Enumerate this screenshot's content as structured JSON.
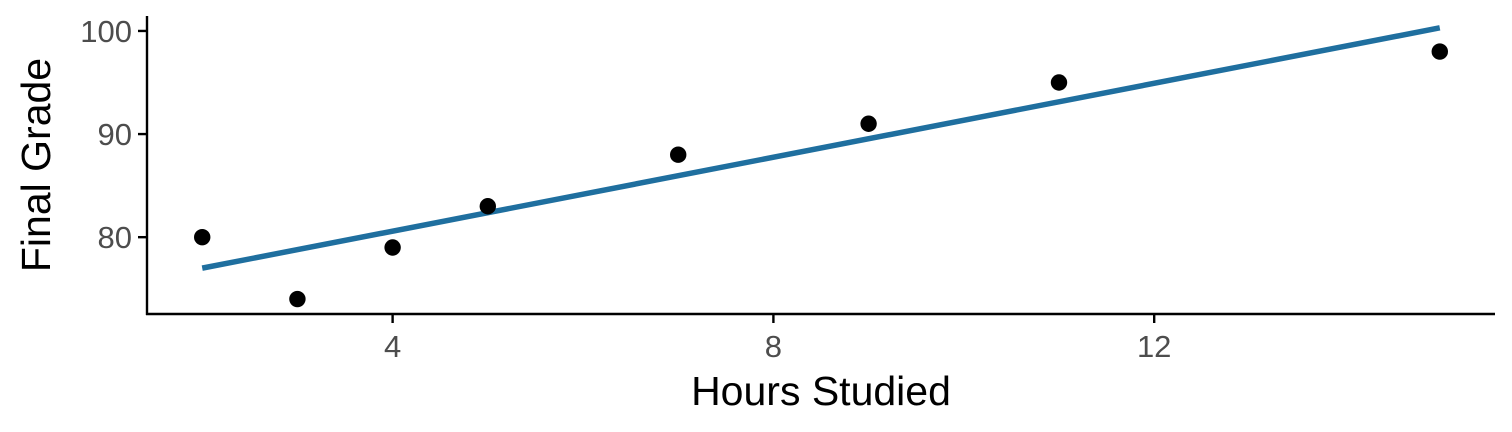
{
  "chart_data": {
    "type": "scatter",
    "title": "",
    "xlabel": "Hours Studied",
    "ylabel": "Final Grade",
    "xlim": [
      1.42,
      15.58
    ],
    "ylim": [
      72.55,
      101.45
    ],
    "x_ticks": [
      4,
      8,
      12
    ],
    "y_ticks": [
      80,
      90,
      100
    ],
    "x_tick_labels": [
      "4",
      "8",
      "12"
    ],
    "y_tick_labels": [
      "80",
      "90",
      "100"
    ],
    "grid": false,
    "legend": "none",
    "points": [
      {
        "x": 2,
        "y": 80
      },
      {
        "x": 3,
        "y": 74
      },
      {
        "x": 4,
        "y": 79
      },
      {
        "x": 5,
        "y": 83
      },
      {
        "x": 7,
        "y": 88
      },
      {
        "x": 9,
        "y": 91
      },
      {
        "x": 11,
        "y": 95
      },
      {
        "x": 15,
        "y": 98
      }
    ],
    "trend_line": {
      "type": "linear",
      "from": {
        "x": 2,
        "y": 77.0
      },
      "to": {
        "x": 15,
        "y": 100.3
      }
    },
    "colors": {
      "points": "#000000",
      "trend_line": "#1f6f9f",
      "axis": "#000000",
      "tick_label": "#4d4d4d"
    }
  }
}
